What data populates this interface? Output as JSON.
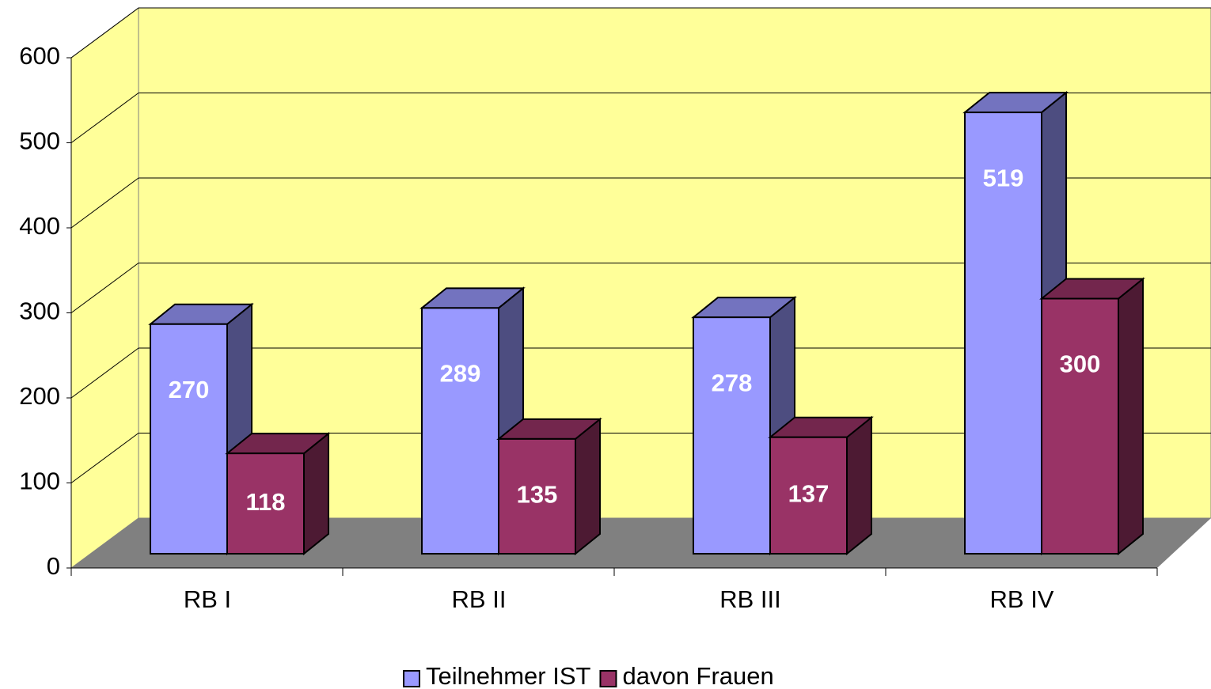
{
  "chart_data": {
    "type": "bar3d",
    "categories": [
      "RB I",
      "RB II",
      "RB III",
      "RB IV"
    ],
    "series": [
      {
        "name": "Teilnehmer IST",
        "color": "#9999ff",
        "values": [
          270,
          289,
          278,
          519
        ]
      },
      {
        "name": "davon Frauen",
        "color": "#993366",
        "values": [
          118,
          135,
          137,
          300
        ]
      }
    ],
    "ylim": [
      0,
      600
    ],
    "yticks": [
      0,
      100,
      200,
      300,
      400,
      500,
      600
    ],
    "grid": true,
    "legend": "bottom"
  }
}
